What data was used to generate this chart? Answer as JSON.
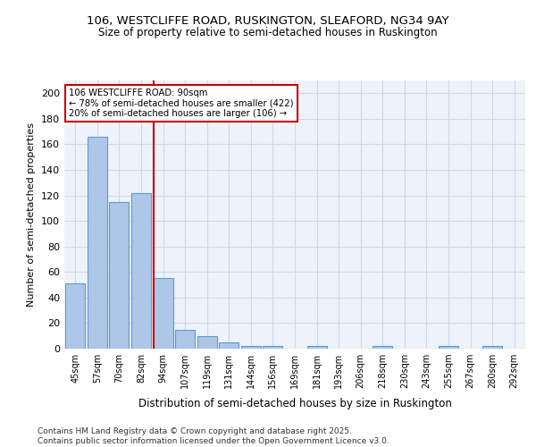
{
  "title1": "106, WESTCLIFFE ROAD, RUSKINGTON, SLEAFORD, NG34 9AY",
  "title2": "Size of property relative to semi-detached houses in Ruskington",
  "xlabel": "Distribution of semi-detached houses by size in Ruskington",
  "ylabel": "Number of semi-detached properties",
  "categories": [
    "45sqm",
    "57sqm",
    "70sqm",
    "82sqm",
    "94sqm",
    "107sqm",
    "119sqm",
    "131sqm",
    "144sqm",
    "156sqm",
    "169sqm",
    "181sqm",
    "193sqm",
    "206sqm",
    "218sqm",
    "230sqm",
    "243sqm",
    "255sqm",
    "267sqm",
    "280sqm",
    "292sqm"
  ],
  "values": [
    51,
    166,
    115,
    122,
    55,
    15,
    10,
    5,
    2,
    2,
    0,
    2,
    0,
    0,
    2,
    0,
    0,
    2,
    0,
    2,
    0
  ],
  "bar_color": "#aec6e8",
  "bar_edge_color": "#5b9bd5",
  "red_line_x": 3.55,
  "annotation_title": "106 WESTCLIFFE ROAD: 90sqm",
  "annotation_line1": "← 78% of semi-detached houses are smaller (422)",
  "annotation_line2": "20% of semi-detached houses are larger (106) →",
  "annotation_box_color": "#ffffff",
  "annotation_box_edge": "#cc0000",
  "red_line_color": "#cc0000",
  "footer1": "Contains HM Land Registry data © Crown copyright and database right 2025.",
  "footer2": "Contains public sector information licensed under the Open Government Licence v3.0.",
  "ylim": [
    0,
    210
  ],
  "yticks": [
    0,
    20,
    40,
    60,
    80,
    100,
    120,
    140,
    160,
    180,
    200
  ],
  "grid_color": "#d0d8e8",
  "bg_color": "#eef2fa"
}
